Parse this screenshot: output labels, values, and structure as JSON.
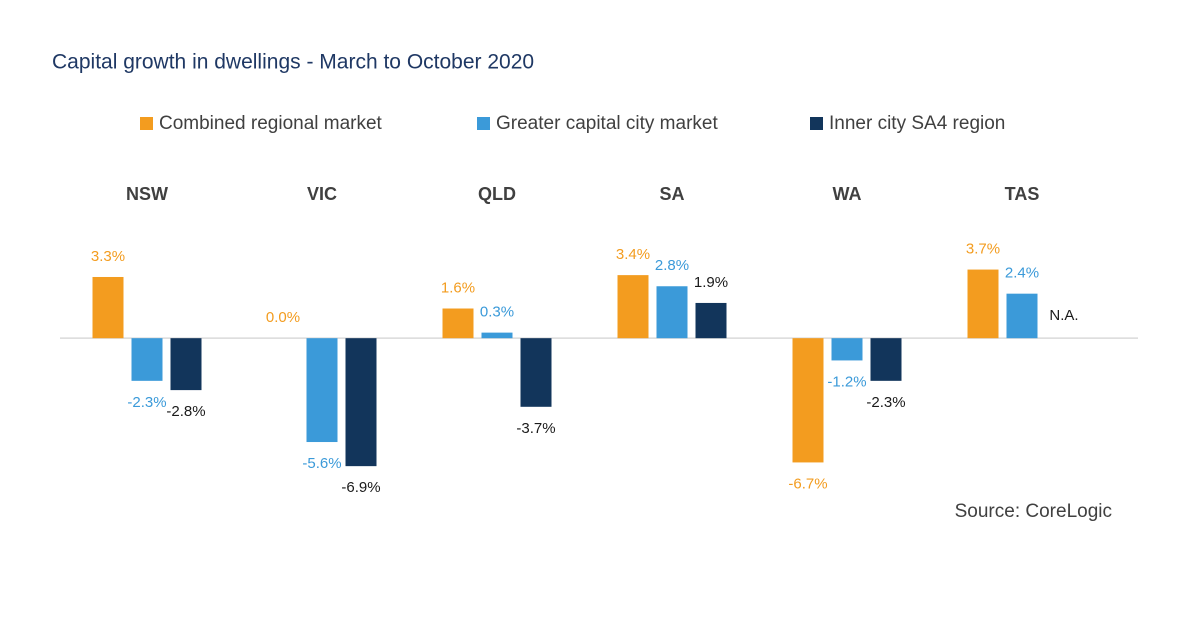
{
  "chart_data": {
    "type": "bar",
    "title": "Capital growth in dwellings - March to October 2020",
    "source": "Source: CoreLogic",
    "categories": [
      "NSW",
      "VIC",
      "QLD",
      "SA",
      "WA",
      "TAS"
    ],
    "ylim": [
      -7,
      4
    ],
    "series": [
      {
        "name": "Combined regional market",
        "color": "#f39c1f",
        "label_color": "#f39c1f",
        "values": [
          3.3,
          0.0,
          1.6,
          3.4,
          -6.7,
          3.7
        ],
        "value_labels": [
          "3.3%",
          "0.0%",
          "1.6%",
          "3.4%",
          "-6.7%",
          "3.7%"
        ]
      },
      {
        "name": "Greater capital city market",
        "color": "#3b9ad9",
        "label_color": "#3b9ad9",
        "values": [
          -2.3,
          -5.6,
          0.3,
          2.8,
          -1.2,
          2.4
        ],
        "value_labels": [
          "-2.3%",
          "-5.6%",
          "0.3%",
          "2.8%",
          "-1.2%",
          "2.4%"
        ]
      },
      {
        "name": "Inner city SA4 region",
        "color": "#12355b",
        "label_color": "#1a1a1a",
        "values": [
          -2.8,
          -6.9,
          -3.7,
          1.9,
          -2.3,
          null
        ],
        "value_labels": [
          "-2.8%",
          "-6.9%",
          "-3.7%",
          "1.9%",
          "-2.3%",
          "N.A."
        ]
      }
    ]
  }
}
